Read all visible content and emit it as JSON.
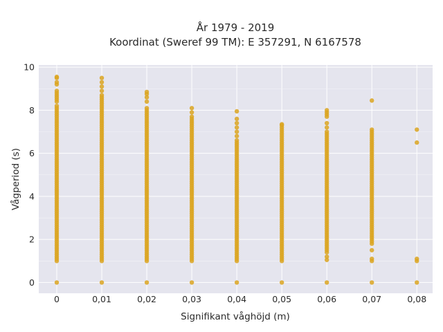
{
  "chart_data": {
    "type": "scatter",
    "title": "År 1979 - 2019",
    "subtitle": "Koordinat (Sweref 99 TM): E 357291, N 6167578",
    "xlabel": "Signifikant våghöjd (m)",
    "ylabel": "Vågperiod (s)",
    "xlim": [
      -0.004,
      0.0835
    ],
    "ylim": [
      -0.5,
      10.1
    ],
    "x_ticks": [
      0,
      0.01,
      0.02,
      0.03,
      0.04,
      0.05,
      0.06,
      0.07,
      0.08
    ],
    "x_tick_labels": [
      "0",
      "0,01",
      "0,02",
      "0,03",
      "0,04",
      "0,05",
      "0,06",
      "0,07",
      "0,08"
    ],
    "y_ticks": [
      0,
      2,
      4,
      6,
      8,
      10
    ],
    "y_tick_labels": [
      "0",
      "2",
      "4",
      "6",
      "8",
      "10"
    ],
    "grid": true,
    "legend": "none",
    "marker_color": "#DAA520",
    "background_color": "#E5E5EE",
    "series": [
      {
        "columns": [
          {
            "x": 0,
            "dense_range": [
              1.0,
              8.1
            ],
            "points": [
              0,
              8.2,
              8.4,
              8.5,
              8.6,
              8.7,
              8.8,
              8.9,
              9.2,
              9.3,
              9.5,
              9.55
            ]
          },
          {
            "x": 0.01,
            "dense_range": [
              1.0,
              8.6
            ],
            "points": [
              0,
              8.7,
              8.9,
              9.1,
              9.3,
              9.5
            ]
          },
          {
            "x": 0.02,
            "dense_range": [
              1.0,
              8.0
            ],
            "points": [
              0,
              8.1,
              8.4,
              8.6,
              8.75,
              8.85
            ]
          },
          {
            "x": 0.03,
            "dense_range": [
              1.0,
              7.5
            ],
            "points": [
              0,
              7.6,
              7.7,
              7.9,
              8.1
            ]
          },
          {
            "x": 0.04,
            "dense_range": [
              1.0,
              6.6
            ],
            "points": [
              0,
              6.8,
              7.0,
              7.2,
              7.4,
              7.6,
              7.95
            ]
          },
          {
            "x": 0.05,
            "dense_range": [
              1.3,
              6.9
            ],
            "points": [
              0,
              1.0,
              1.1,
              1.2,
              7.0,
              7.1,
              7.2,
              7.3,
              7.35
            ]
          },
          {
            "x": 0.06,
            "dense_range": [
              1.4,
              7.0
            ],
            "points": [
              0,
              1.05,
              1.2,
              7.2,
              7.4,
              7.7,
              7.8,
              7.9,
              8.0
            ]
          },
          {
            "x": 0.07,
            "dense_range": [
              1.8,
              6.8
            ],
            "points": [
              0,
              1.0,
              1.1,
              1.5,
              6.9,
              7.0,
              7.1,
              8.45
            ]
          },
          {
            "x": 0.08,
            "dense_range": null,
            "points": [
              0,
              1.0,
              1.1,
              6.5,
              7.1
            ]
          }
        ]
      }
    ]
  }
}
